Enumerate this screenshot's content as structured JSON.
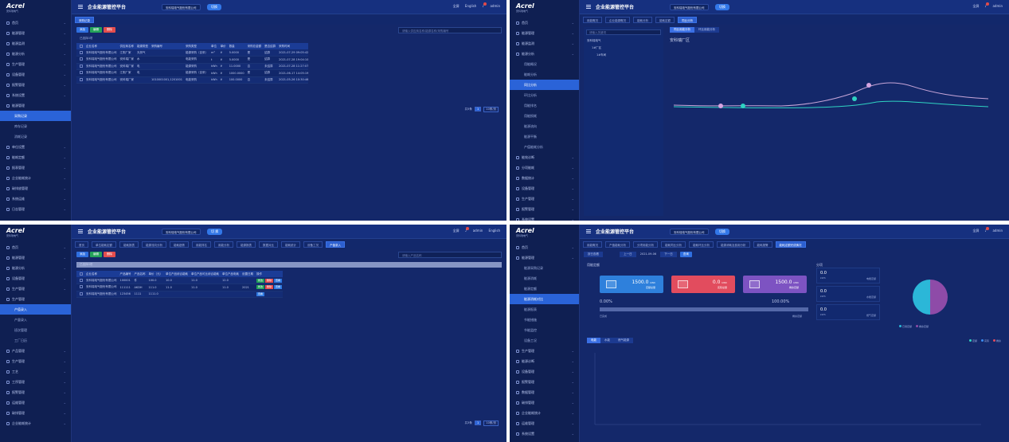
{
  "brand": {
    "logo": "Acrel",
    "logo_sub": "安科瑞电气"
  },
  "header": {
    "title": "企业能源管控平台",
    "company": "安科瑞电气股份有限公司",
    "switch_label": "切换",
    "switch_label_alt": "切 换",
    "fullscreen": "全屏",
    "lang": "English",
    "user": "admin"
  },
  "panel1": {
    "sidebar": [
      {
        "label": "首页"
      },
      {
        "label": "能源管理"
      },
      {
        "label": "能源监测"
      },
      {
        "label": "能源分析"
      },
      {
        "label": "生产管理"
      },
      {
        "label": "设备管理"
      },
      {
        "label": "报警管理"
      },
      {
        "label": "系统设置"
      }
    ],
    "sidebar_group": "能源管理",
    "sidebar_subs": [
      {
        "label": "采购记录",
        "active": true
      },
      {
        "label": "库存记录"
      },
      {
        "label": "消耗记录"
      }
    ],
    "sidebar_tail": [
      {
        "label": "单位设置"
      },
      {
        "label": "能耗定额"
      },
      {
        "label": "报表管理"
      },
      {
        "label": "企业能耗统计"
      },
      {
        "label": "碳排放管理"
      },
      {
        "label": "系统运维"
      },
      {
        "label": "日志管理"
      }
    ],
    "tab": "采购记录",
    "buttons": {
      "add": "添加",
      "edit": "编辑",
      "delete": "删除"
    },
    "search_placeholder": "请输入供应商名称/能源名称/采购编号",
    "filter": "已选择0项",
    "columns": [
      "企业名称",
      "供应商名称",
      "能源类型",
      "采购编号",
      "采购类型",
      "单位",
      "单价",
      "数量",
      "采购总金额",
      "是否结算",
      "采购时间"
    ],
    "rows": [
      [
        "安科瑞电气股份有限公司",
        "江阴厂家",
        "天然气",
        "",
        "能源采购（自采）",
        "m³",
        "¥",
        "5.0000",
        "是",
        "结算",
        "2021-07-29 09:05:42"
      ],
      [
        "安科瑞电气股份有限公司",
        "安科瑞厂家",
        "水",
        "",
        "电能采购",
        "t",
        "¥",
        "5.0000",
        "是",
        "结算",
        "2021-07-28 19:04:10"
      ],
      [
        "安科瑞电气股份有限公司",
        "安科瑞厂家",
        "电",
        "",
        "能源采购",
        "kWh",
        "¥",
        "11.0000",
        "否",
        "未结算",
        "2021-07-28 11:27:07"
      ],
      [
        "安科瑞电气股份有限公司",
        "江阴厂家",
        "电",
        "",
        "能源采购（自采）",
        "kWh",
        "¥",
        "1000.0000",
        "是",
        "结算",
        "2021-06-17 14:05:19"
      ],
      [
        "安科瑞电气股份有限公司",
        "安科瑞厂家",
        "",
        "1010001001,1201001",
        "电能采购",
        "kWh",
        "¥",
        "100.0000",
        "否",
        "未结算",
        "2021-05-26 10:30:46"
      ]
    ],
    "pager": {
      "total": "共5条",
      "page": "1",
      "size": "10条/页"
    }
  },
  "panel2": {
    "sidebar": [
      {
        "label": "首页"
      },
      {
        "label": "能源管理"
      },
      {
        "label": "能源监测"
      },
      {
        "label": "能源分析"
      }
    ],
    "sidebar_subs": [
      {
        "label": "用能概况"
      },
      {
        "label": "能耗分析"
      },
      {
        "label": "同比分析",
        "active": true
      },
      {
        "label": "环比分析"
      },
      {
        "label": "用能排名"
      },
      {
        "label": "用能损耗"
      },
      {
        "label": "能源流向"
      },
      {
        "label": "能源平衡"
      },
      {
        "label": "产值能耗分析"
      }
    ],
    "sidebar_tail": [
      {
        "label": "能效诊断"
      },
      {
        "label": "分项能耗"
      },
      {
        "label": "数据统计"
      },
      {
        "label": "设备管理"
      },
      {
        "label": "生产管理"
      },
      {
        "label": "报警管理"
      },
      {
        "label": "系统设置"
      },
      {
        "label": "运维管理"
      }
    ],
    "tabs": [
      "用能概况",
      "企业能源概况",
      "能耗分析",
      "能耗定额",
      "同比分析"
    ],
    "tree_search": "请输入关键词",
    "tree": [
      "安科瑞电气",
      "1#厂区",
      "1#车间"
    ],
    "chart_tabs": [
      "同比用能分析",
      "环比用能分析"
    ],
    "chart_title": "安科瑞厂区"
  },
  "panel3": {
    "sidebar": [
      {
        "label": "首页"
      },
      {
        "label": "能源管理"
      },
      {
        "label": "能源分析"
      },
      {
        "label": "设备管理"
      },
      {
        "label": "生产管理"
      }
    ],
    "sidebar_group": "生产管理",
    "sidebar_subs": [
      {
        "label": "产值录入",
        "active": true
      },
      {
        "label": "产量录入"
      },
      {
        "label": "班次管理"
      },
      {
        "label": "工厂日历"
      }
    ],
    "sidebar_tail": [
      {
        "label": "产品管理"
      },
      {
        "label": "生产管理"
      },
      {
        "label": "工艺"
      },
      {
        "label": "工序管理"
      },
      {
        "label": "报警管理"
      },
      {
        "label": "运维管理"
      },
      {
        "label": "碳排管理"
      },
      {
        "label": "企业能耗统计"
      }
    ],
    "tabs": [
      "首页",
      "单位能耗定额",
      "能耗报表",
      "能源流向分析",
      "能耗趋势",
      "用能排名",
      "用能分析",
      "能源报表",
      "数据对比",
      "能耗统计",
      "设备工况",
      "产值录入"
    ],
    "buttons": {
      "add": "添加",
      "edit": "编辑",
      "delete": "删除"
    },
    "search_placeholder": "请输入产品名称",
    "filter": "已选择0项",
    "columns": [
      "企业名称",
      "产品编号",
      "产品名称",
      "单价（元）",
      "单位产品综合能耗",
      "单位产品可比综合能耗",
      "单位产品电耗",
      "设置日期",
      "操作"
    ],
    "rows": [
      [
        "安科瑞电气股份有限公司",
        "100001",
        "件",
        "100.0",
        "10.0",
        "11.0",
        "12.0",
        "",
        ""
      ],
      [
        "安科瑞电气股份有限公司",
        "111111",
        "AKDH",
        "111.0",
        "11.0",
        "11.0",
        "11.0",
        "2021",
        ""
      ],
      [
        "安科瑞电气股份有限公司",
        "123456",
        "1111",
        "1111.0",
        "",
        "",
        "",
        "",
        ""
      ]
    ],
    "ops": {
      "edit": "修改",
      "delete": "删除",
      "view": "查看"
    },
    "pager": {
      "total": "共3条",
      "page": "1",
      "size": "10条/页"
    }
  },
  "panel4": {
    "sidebar": [
      {
        "label": "首页"
      },
      {
        "label": "能源管理"
      }
    ],
    "sidebar_subs": [
      {
        "label": "能源采购记录"
      },
      {
        "label": "能源消耗"
      },
      {
        "label": "能源定额"
      },
      {
        "label": "能源消耗对比",
        "active": true
      },
      {
        "label": "能源报表"
      },
      {
        "label": "节能措施"
      },
      {
        "label": "节能监控"
      },
      {
        "label": "设备工况"
      }
    ],
    "sidebar_tail": [
      {
        "label": "生产管理"
      },
      {
        "label": "能源诊断"
      },
      {
        "label": "设备管理"
      },
      {
        "label": "报警管理"
      },
      {
        "label": "数据管理"
      },
      {
        "label": "碳排管理"
      },
      {
        "label": "企业能耗统计"
      },
      {
        "label": "运维管理"
      },
      {
        "label": "系统设置"
      },
      {
        "label": "日志管理"
      },
      {
        "label": "基本配置"
      }
    ],
    "tabs": [
      "用能概况",
      "产值能耗分析",
      "分项用能分析",
      "能耗同比分析",
      "能耗环比分析",
      "能源消耗及费用分析",
      "能耗报警",
      "能耗定额完成情况"
    ],
    "date_select": "按日查看",
    "date_prev": "上一日",
    "date_value": "2021-09-06",
    "date_next": "下一日",
    "query": "查询",
    "section_left": "用能定额",
    "section_right": "分项",
    "cards": [
      {
        "value": "1500.0",
        "unit": "kWh",
        "label": "定额总量"
      },
      {
        "value": "0.0",
        "unit": "kWh",
        "label": "实际总量"
      },
      {
        "value": "1500.0",
        "unit": "kWh",
        "label": "剩余定额"
      }
    ],
    "progress_left": "0.00%",
    "progress_right": "100.00%",
    "progress_left_label": "已完成",
    "progress_right_label": "剩余定额",
    "small_boxes": [
      {
        "value": "0.0",
        "unit": "kWh",
        "label": "电能定额"
      },
      {
        "value": "0.0",
        "unit": "kWh",
        "label": "水能定额"
      },
      {
        "value": "0.0",
        "unit": "kWh",
        "label": "燃气定额"
      }
    ],
    "legend": [
      "已用定额",
      "剩余定额"
    ],
    "bottom_tabs": [
      "电能",
      "水能",
      "燃气能源"
    ],
    "bottom_legend": [
      "定额",
      "实际",
      "剩余"
    ]
  }
}
